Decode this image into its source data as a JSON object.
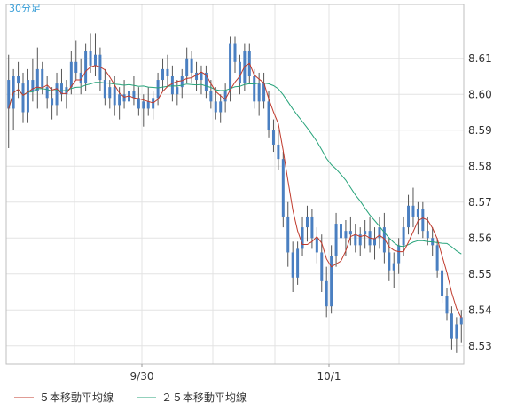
{
  "chart_data": {
    "type": "candlestick",
    "period_label": "30分足",
    "ylim": [
      8.525,
      8.625
    ],
    "y_ticks": [
      "8.61",
      "8.60",
      "8.59",
      "8.58",
      "8.57",
      "8.56",
      "8.55",
      "8.54",
      "8.53"
    ],
    "x_ticks": [
      "9/30",
      "10/1"
    ],
    "grid": true,
    "legend_position": "bottom-left",
    "series": [
      {
        "name": "５本移動平均線",
        "color": "#c0392b"
      },
      {
        "name": "２５本移動平均線",
        "color": "#27a37a"
      }
    ],
    "colors": {
      "up": "#4a7fc1",
      "down": "#4a7fc1",
      "wick": "#555555"
    },
    "candles": [
      [
        8.604,
        8.611,
        8.585,
        8.596
      ],
      [
        8.596,
        8.607,
        8.59,
        8.605
      ],
      [
        8.605,
        8.609,
        8.599,
        8.603
      ],
      [
        8.603,
        8.606,
        8.592,
        8.595
      ],
      [
        8.595,
        8.607,
        8.592,
        8.604
      ],
      [
        8.604,
        8.61,
        8.598,
        8.601
      ],
      [
        8.601,
        8.613,
        8.596,
        8.607
      ],
      [
        8.607,
        8.609,
        8.6,
        8.602
      ],
      [
        8.602,
        8.605,
        8.596,
        8.599
      ],
      [
        8.599,
        8.602,
        8.593,
        8.597
      ],
      [
        8.597,
        8.606,
        8.594,
        8.603
      ],
      [
        8.603,
        8.607,
        8.598,
        8.6
      ],
      [
        8.6,
        8.604,
        8.596,
        8.602
      ],
      [
        8.602,
        8.612,
        8.6,
        8.609
      ],
      [
        8.609,
        8.615,
        8.604,
        8.606
      ],
      [
        8.606,
        8.61,
        8.6,
        8.603
      ],
      [
        8.603,
        8.614,
        8.601,
        8.612
      ],
      [
        8.612,
        8.617,
        8.606,
        8.608
      ],
      [
        8.608,
        8.617,
        8.605,
        8.611
      ],
      [
        8.611,
        8.613,
        8.601,
        8.604
      ],
      [
        8.604,
        8.607,
        8.597,
        8.599
      ],
      [
        8.599,
        8.604,
        8.596,
        8.602
      ],
      [
        8.602,
        8.605,
        8.594,
        8.597
      ],
      [
        8.597,
        8.602,
        8.593,
        8.6
      ],
      [
        8.6,
        8.604,
        8.596,
        8.598
      ],
      [
        8.598,
        8.603,
        8.595,
        8.601
      ],
      [
        8.601,
        8.605,
        8.597,
        8.599
      ],
      [
        8.599,
        8.602,
        8.594,
        8.596
      ],
      [
        8.596,
        8.6,
        8.591,
        8.598
      ],
      [
        8.598,
        8.602,
        8.594,
        8.596
      ],
      [
        8.596,
        8.601,
        8.593,
        8.599
      ],
      [
        8.599,
        8.606,
        8.597,
        8.604
      ],
      [
        8.604,
        8.61,
        8.601,
        8.607
      ],
      [
        8.607,
        8.611,
        8.602,
        8.605
      ],
      [
        8.605,
        8.608,
        8.598,
        8.6
      ],
      [
        8.6,
        8.604,
        8.597,
        8.602
      ],
      [
        8.602,
        8.607,
        8.599,
        8.605
      ],
      [
        8.605,
        8.613,
        8.603,
        8.61
      ],
      [
        8.61,
        8.612,
        8.603,
        8.606
      ],
      [
        8.606,
        8.609,
        8.601,
        8.604
      ],
      [
        8.604,
        8.608,
        8.6,
        8.606
      ],
      [
        8.606,
        8.608,
        8.599,
        8.601
      ],
      [
        8.601,
        8.604,
        8.596,
        8.598
      ],
      [
        8.598,
        8.602,
        8.593,
        8.595
      ],
      [
        8.595,
        8.6,
        8.592,
        8.598
      ],
      [
        8.598,
        8.603,
        8.595,
        8.601
      ],
      [
        8.601,
        8.616,
        8.598,
        8.614
      ],
      [
        8.614,
        8.616,
        8.606,
        8.609
      ],
      [
        8.609,
        8.611,
        8.6,
        8.603
      ],
      [
        8.603,
        8.614,
        8.601,
        8.612
      ],
      [
        8.612,
        8.614,
        8.603,
        8.605
      ],
      [
        8.605,
        8.607,
        8.596,
        8.598
      ],
      [
        8.598,
        8.606,
        8.594,
        8.603
      ],
      [
        8.603,
        8.606,
        8.596,
        8.598
      ],
      [
        8.598,
        8.601,
        8.588,
        8.59
      ],
      [
        8.59,
        8.593,
        8.584,
        8.586
      ],
      [
        8.586,
        8.59,
        8.579,
        8.582
      ],
      [
        8.582,
        8.584,
        8.563,
        8.566
      ],
      [
        8.566,
        8.57,
        8.552,
        8.556
      ],
      [
        8.556,
        8.559,
        8.545,
        8.549
      ],
      [
        8.549,
        8.559,
        8.547,
        8.557
      ],
      [
        8.557,
        8.566,
        8.555,
        8.563
      ],
      [
        8.563,
        8.569,
        8.559,
        8.566
      ],
      [
        8.566,
        8.568,
        8.557,
        8.56
      ],
      [
        8.56,
        8.563,
        8.553,
        8.556
      ],
      [
        8.556,
        8.561,
        8.545,
        8.548
      ],
      [
        8.548,
        8.552,
        8.538,
        8.541
      ],
      [
        8.541,
        8.558,
        8.539,
        8.555
      ],
      [
        8.555,
        8.567,
        8.552,
        8.564
      ],
      [
        8.564,
        8.568,
        8.557,
        8.56
      ],
      [
        8.56,
        8.565,
        8.555,
        8.562
      ],
      [
        8.562,
        8.566,
        8.558,
        8.561
      ],
      [
        8.561,
        8.564,
        8.556,
        8.558
      ],
      [
        8.558,
        8.563,
        8.555,
        8.561
      ],
      [
        8.561,
        8.565,
        8.557,
        8.562
      ],
      [
        8.562,
        8.566,
        8.556,
        8.558
      ],
      [
        8.558,
        8.563,
        8.554,
        8.56
      ],
      [
        8.56,
        8.566,
        8.557,
        8.563
      ],
      [
        8.563,
        8.567,
        8.553,
        8.556
      ],
      [
        8.556,
        8.56,
        8.548,
        8.551
      ],
      [
        8.551,
        8.556,
        8.546,
        8.553
      ],
      [
        8.553,
        8.56,
        8.55,
        8.558
      ],
      [
        8.558,
        8.566,
        8.555,
        8.563
      ],
      [
        8.563,
        8.572,
        8.561,
        8.569
      ],
      [
        8.569,
        8.574,
        8.563,
        8.566
      ],
      [
        8.566,
        8.57,
        8.561,
        8.568
      ],
      [
        8.568,
        8.57,
        8.56,
        8.562
      ],
      [
        8.562,
        8.566,
        8.558,
        8.56
      ],
      [
        8.56,
        8.563,
        8.555,
        8.558
      ],
      [
        8.558,
        8.56,
        8.549,
        8.551
      ],
      [
        8.551,
        8.553,
        8.542,
        8.544
      ],
      [
        8.544,
        8.546,
        8.537,
        8.539
      ],
      [
        8.539,
        8.541,
        8.529,
        8.532
      ],
      [
        8.532,
        8.538,
        8.528,
        8.536
      ],
      [
        8.536,
        8.54,
        8.531,
        8.538
      ]
    ]
  }
}
